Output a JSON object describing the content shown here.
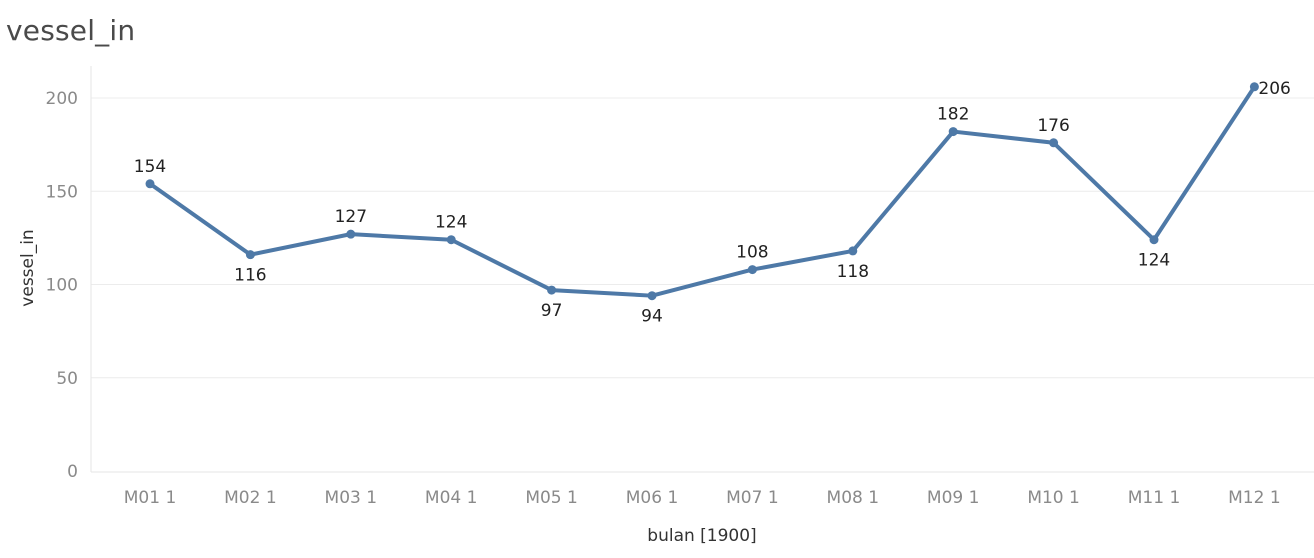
{
  "chart_data": {
    "type": "line",
    "title": "vessel_in",
    "xlabel": "bulan [1900]",
    "ylabel": "vessel_in",
    "categories": [
      "M01 1",
      "M02 1",
      "M03 1",
      "M04 1",
      "M05 1",
      "M06 1",
      "M07 1",
      "M08 1",
      "M09 1",
      "M10 1",
      "M11 1",
      "M12 1"
    ],
    "series": [
      {
        "values": [
          154,
          116,
          127,
          124,
          97,
          94,
          108,
          118,
          182,
          176,
          124,
          206
        ]
      }
    ],
    "label_positions": [
      "above",
      "below",
      "above",
      "above",
      "below",
      "below",
      "above",
      "below",
      "above",
      "above",
      "below",
      "right"
    ],
    "ylim": [
      0,
      220
    ],
    "yticks": [
      0,
      50,
      100,
      150,
      200
    ],
    "grid": true,
    "line_color": "#4e79a7"
  }
}
